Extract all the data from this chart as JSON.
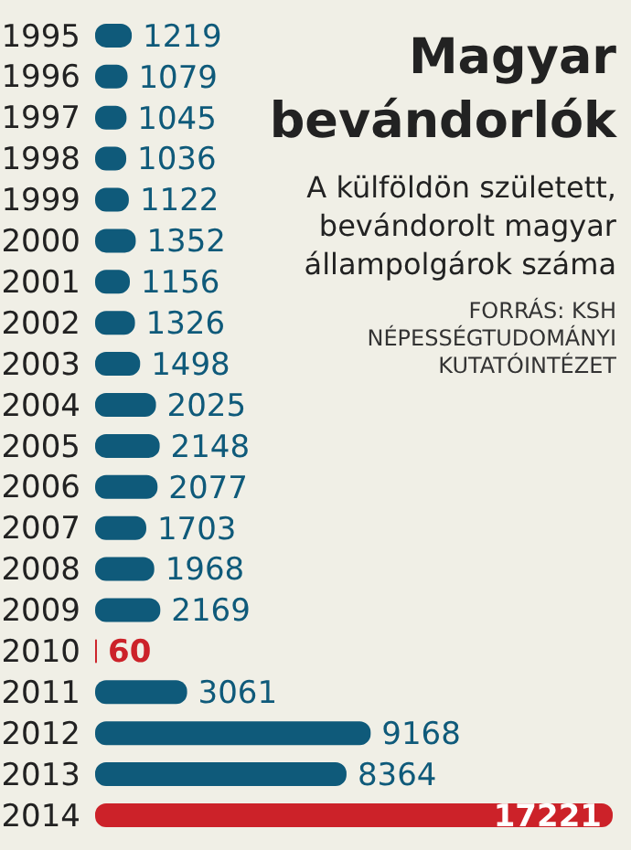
{
  "chart_data": {
    "type": "bar",
    "orientation": "horizontal",
    "title": "Magyar bevándorlók",
    "subtitle": "A külföldön született, bevándorolt magyar állampolgárok száma",
    "annotations": [
      "FORRÁS: KSH NÉPESSÉGTUDOMÁNYI KUTATÓINTÉZET"
    ],
    "categories": [
      "1995",
      "1996",
      "1997",
      "1998",
      "1999",
      "2000",
      "2001",
      "2002",
      "2003",
      "2004",
      "2005",
      "2006",
      "2007",
      "2008",
      "2009",
      "2010",
      "2011",
      "2012",
      "2013",
      "2014"
    ],
    "values": [
      1219,
      1079,
      1045,
      1036,
      1122,
      1352,
      1156,
      1326,
      1498,
      2025,
      2148,
      2077,
      1703,
      1968,
      2169,
      60,
      3061,
      9168,
      8364,
      17221
    ],
    "colors": [
      "#0f5a7a",
      "#0f5a7a",
      "#0f5a7a",
      "#0f5a7a",
      "#0f5a7a",
      "#0f5a7a",
      "#0f5a7a",
      "#0f5a7a",
      "#0f5a7a",
      "#0f5a7a",
      "#0f5a7a",
      "#0f5a7a",
      "#0f5a7a",
      "#0f5a7a",
      "#0f5a7a",
      "#cc2229",
      "#0f5a7a",
      "#0f5a7a",
      "#0f5a7a",
      "#cc2229"
    ],
    "data_labels": true,
    "tick_labels": "y",
    "grid": false,
    "legend": false
  }
}
